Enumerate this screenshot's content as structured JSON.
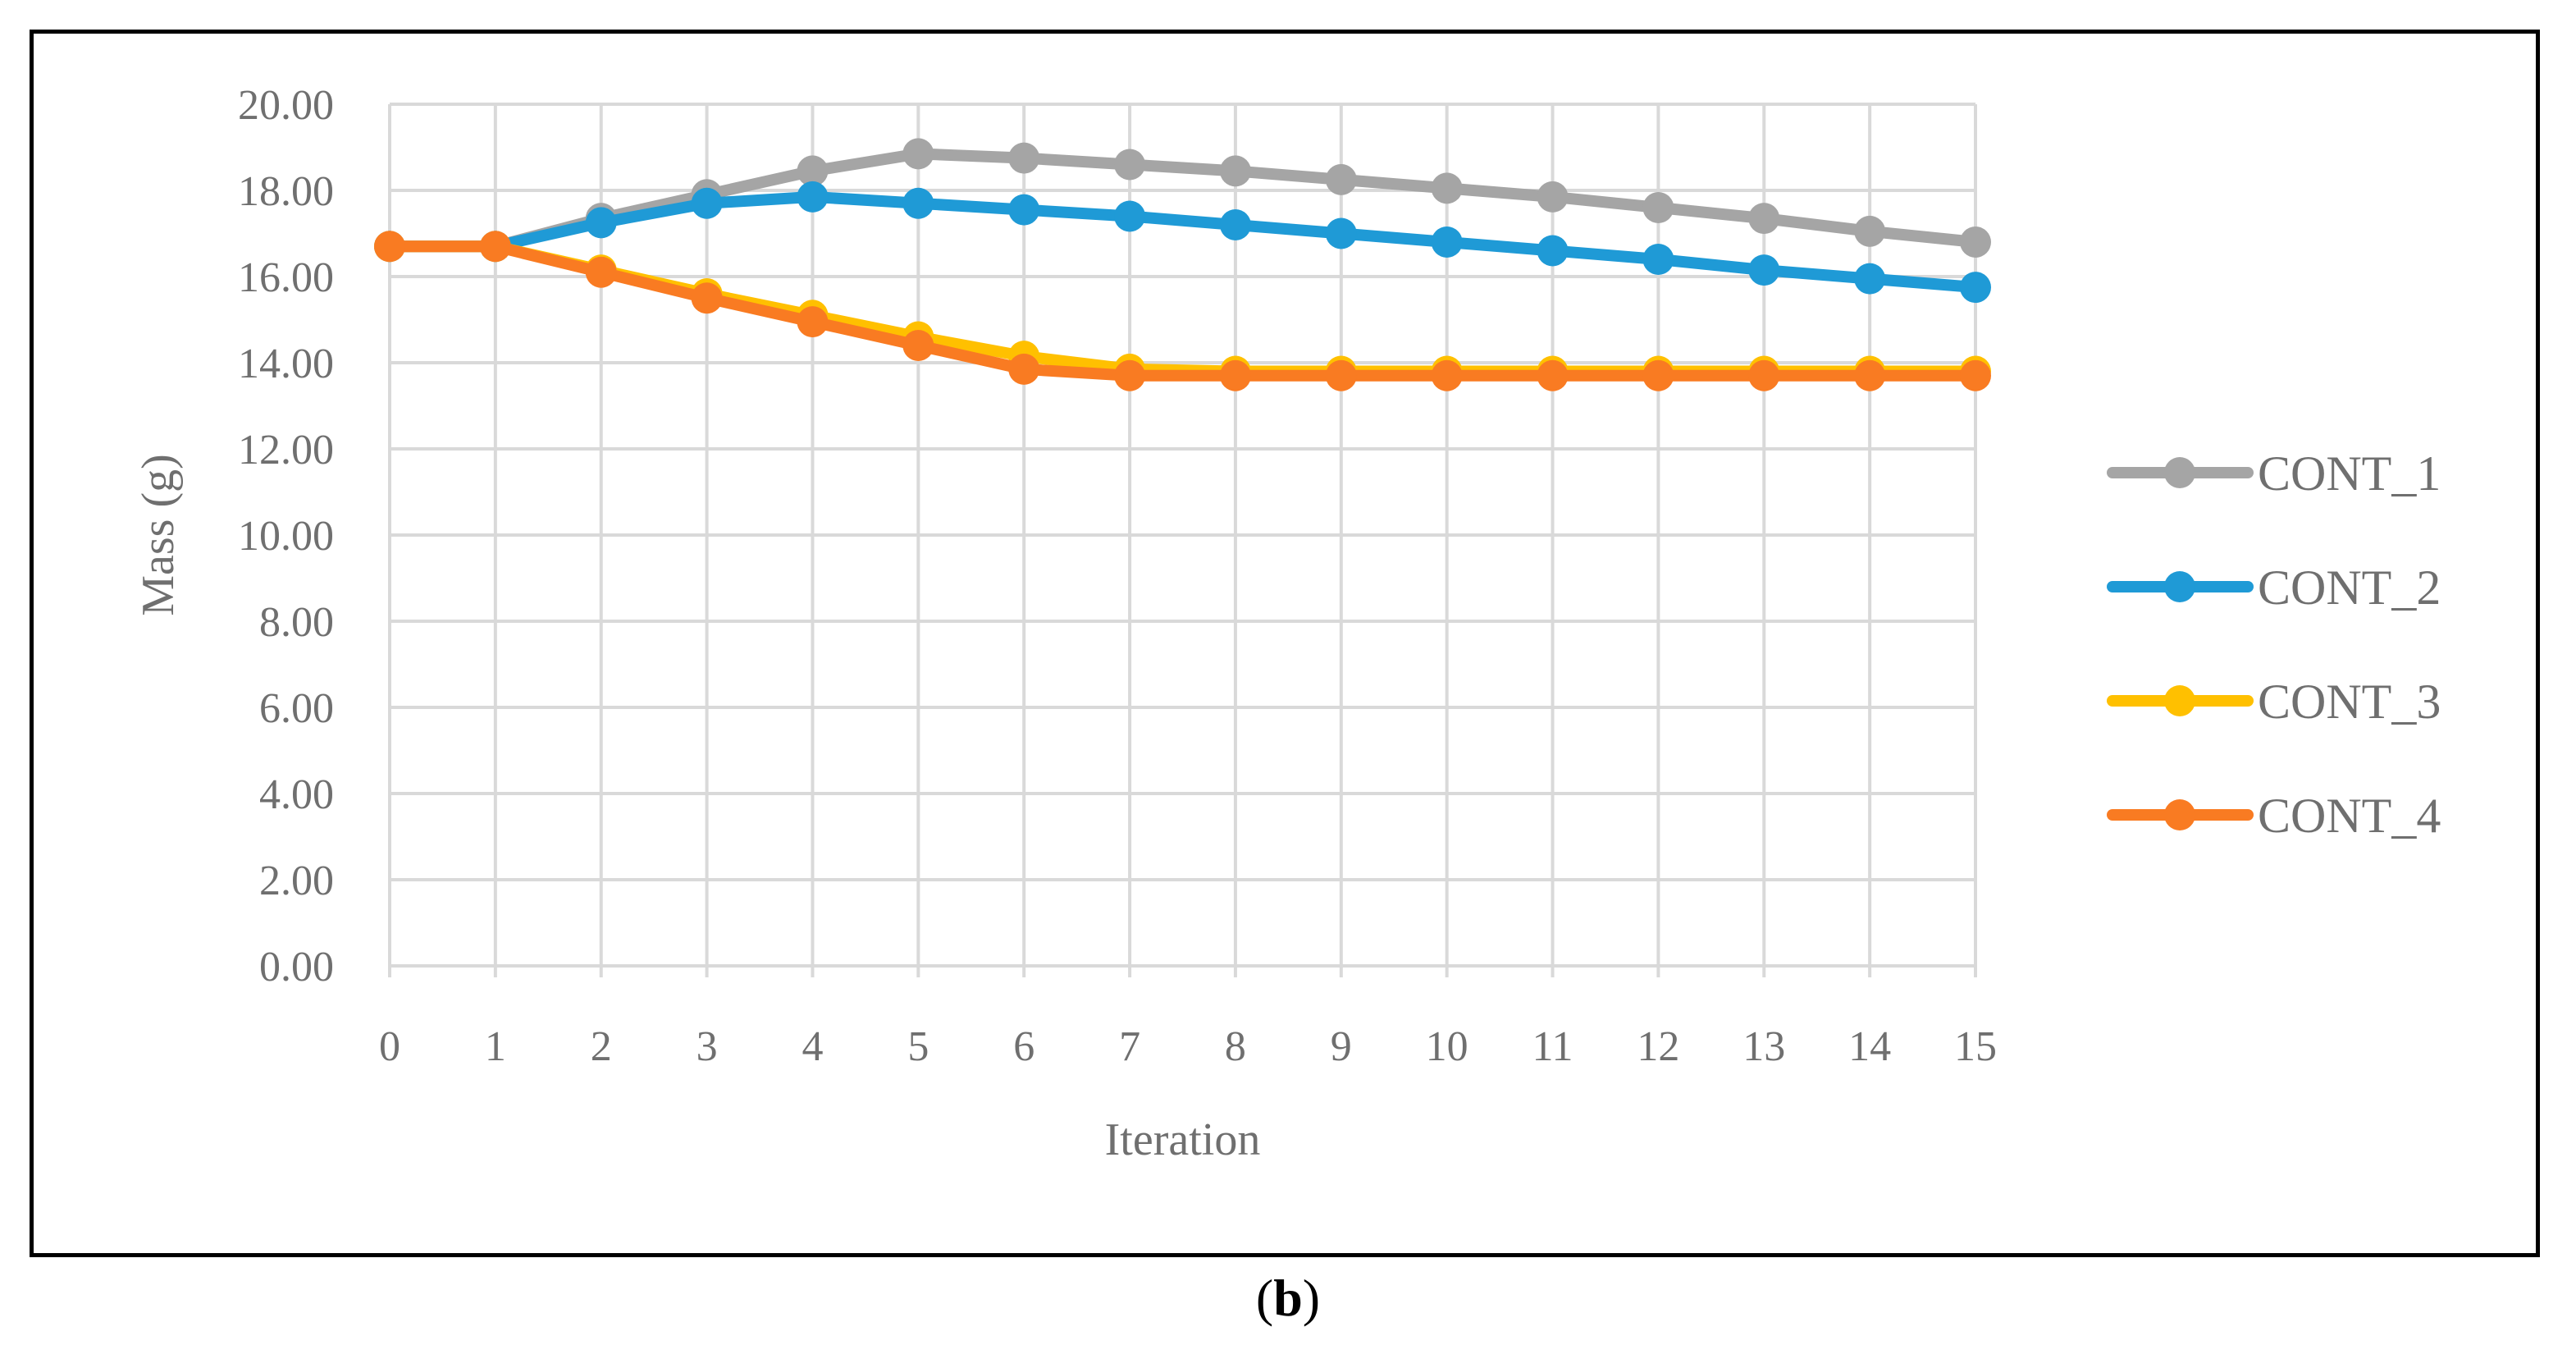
{
  "chart_data": {
    "type": "line",
    "title": "",
    "xlabel": "Iteration",
    "ylabel": "Mass  (g)",
    "categories": [
      "0",
      "1",
      "2",
      "3",
      "4",
      "5",
      "6",
      "7",
      "8",
      "9",
      "10",
      "11",
      "12",
      "13",
      "14",
      "15"
    ],
    "y_ticks": [
      "0.00",
      "2.00",
      "4.00",
      "6.00",
      "8.00",
      "10.00",
      "12.00",
      "14.00",
      "16.00",
      "18.00",
      "20.00"
    ],
    "ylim": [
      0,
      20
    ],
    "grid": true,
    "legend_position": "right",
    "series": [
      {
        "name": "CONT_1",
        "color": "#a5a5a5",
        "values": [
          16.7,
          16.7,
          17.35,
          17.9,
          18.45,
          18.85,
          18.75,
          18.6,
          18.45,
          18.25,
          18.05,
          17.85,
          17.6,
          17.35,
          17.05,
          16.8
        ]
      },
      {
        "name": "CONT_2",
        "color": "#1f9ad6",
        "values": [
          16.7,
          16.7,
          17.25,
          17.7,
          17.85,
          17.7,
          17.55,
          17.4,
          17.2,
          17.0,
          16.8,
          16.6,
          16.4,
          16.15,
          15.95,
          15.75
        ]
      },
      {
        "name": "CONT_3",
        "color": "#ffc000",
        "values": [
          16.7,
          16.7,
          16.15,
          15.6,
          15.1,
          14.6,
          14.15,
          13.85,
          13.8,
          13.8,
          13.8,
          13.8,
          13.8,
          13.8,
          13.8,
          13.8
        ]
      },
      {
        "name": "CONT_4",
        "color": "#f97b22",
        "values": [
          16.7,
          16.7,
          16.1,
          15.5,
          14.95,
          14.4,
          13.85,
          13.7,
          13.7,
          13.7,
          13.7,
          13.7,
          13.7,
          13.7,
          13.7,
          13.7
        ]
      }
    ]
  },
  "caption": {
    "open": "(",
    "letter": "b",
    "close": ")"
  },
  "colors": {
    "grid": "#d9d9d9",
    "text": "#6f6f6f",
    "frame": "#000000"
  }
}
